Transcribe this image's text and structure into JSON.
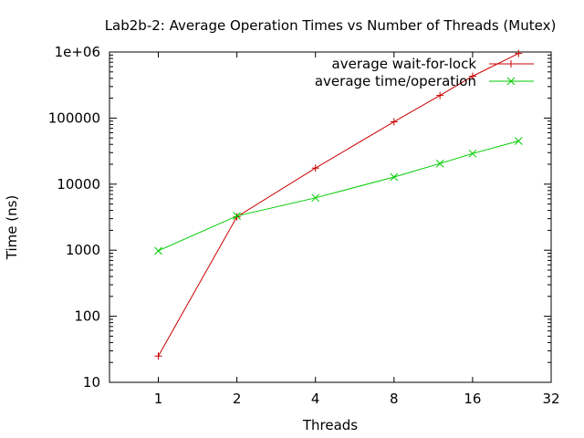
{
  "chart_data": {
    "type": "line",
    "title": "Lab2b-2: Average Operation Times vs Number of Threads (Mutex)",
    "xlabel": "Threads",
    "ylabel": "Time (ns)",
    "xscale": "log2",
    "yscale": "log10",
    "xlim": [
      0.65,
      32
    ],
    "ylim": [
      10,
      1000000
    ],
    "x_ticks": [
      1,
      2,
      4,
      8,
      16,
      32
    ],
    "x_tick_labels": [
      "1",
      "2",
      "4",
      "8",
      "16",
      "32"
    ],
    "y_ticks": [
      10,
      100,
      1000,
      10000,
      100000,
      1000000
    ],
    "y_tick_labels": [
      "10",
      "100",
      "1000",
      "10000",
      "100000",
      "1e+06"
    ],
    "legend_position": "top-right",
    "grid": false,
    "series": [
      {
        "name": "average wait-for-lock",
        "color": "#cc0000",
        "marker": "plus",
        "x": [
          1,
          2,
          4,
          8,
          12,
          16,
          24
        ],
        "y": [
          25,
          3200,
          17500,
          88000,
          220000,
          430000,
          950000
        ]
      },
      {
        "name": "average time/operation",
        "color": "#00cc00",
        "marker": "cross",
        "x": [
          1,
          2,
          4,
          8,
          12,
          16,
          24
        ],
        "y": [
          980,
          3300,
          6200,
          12800,
          20500,
          29000,
          45000
        ]
      }
    ]
  }
}
